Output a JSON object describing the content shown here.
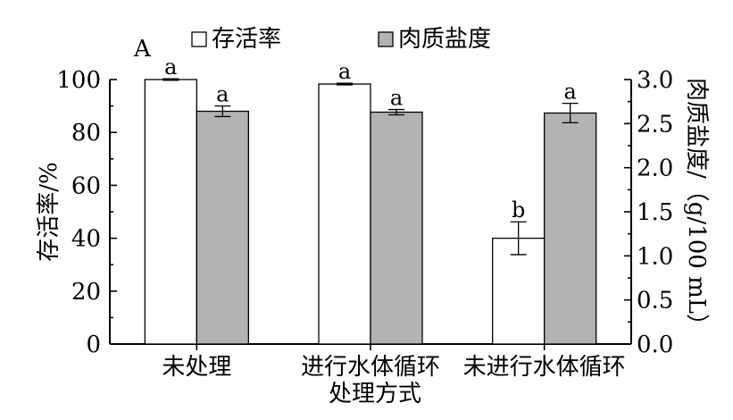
{
  "chart_data": {
    "type": "bar",
    "panel_label": "A",
    "xlabel": "处理方式",
    "ylabel": "存活率/%",
    "y2label": "肉质盐度/（g/100 mL）",
    "categories": [
      "未处理",
      "进行水体循环",
      "未进行水体循环"
    ],
    "ylim": [
      0,
      100
    ],
    "y2lim": [
      0,
      3.0
    ],
    "yticks": [
      "0",
      "20",
      "40",
      "60",
      "80",
      "100"
    ],
    "y2ticks": [
      "0.0",
      "0.5",
      "1.0",
      "1.5",
      "2.0",
      "2.5",
      "3.0"
    ],
    "legend_position": "top",
    "series": [
      {
        "name": "存活率",
        "axis": "left",
        "color": "#ffffff",
        "values": [
          100,
          98.3,
          40
        ],
        "errors": [
          0.3,
          0.3,
          6.2
        ],
        "labels": [
          "a",
          "a",
          "b"
        ]
      },
      {
        "name": "肉质盐度",
        "axis": "right",
        "color": "#b3b3b3",
        "values": [
          2.64,
          2.63,
          2.62
        ],
        "errors": [
          0.06,
          0.03,
          0.11
        ],
        "labels": [
          "a",
          "a",
          "a"
        ]
      }
    ]
  }
}
